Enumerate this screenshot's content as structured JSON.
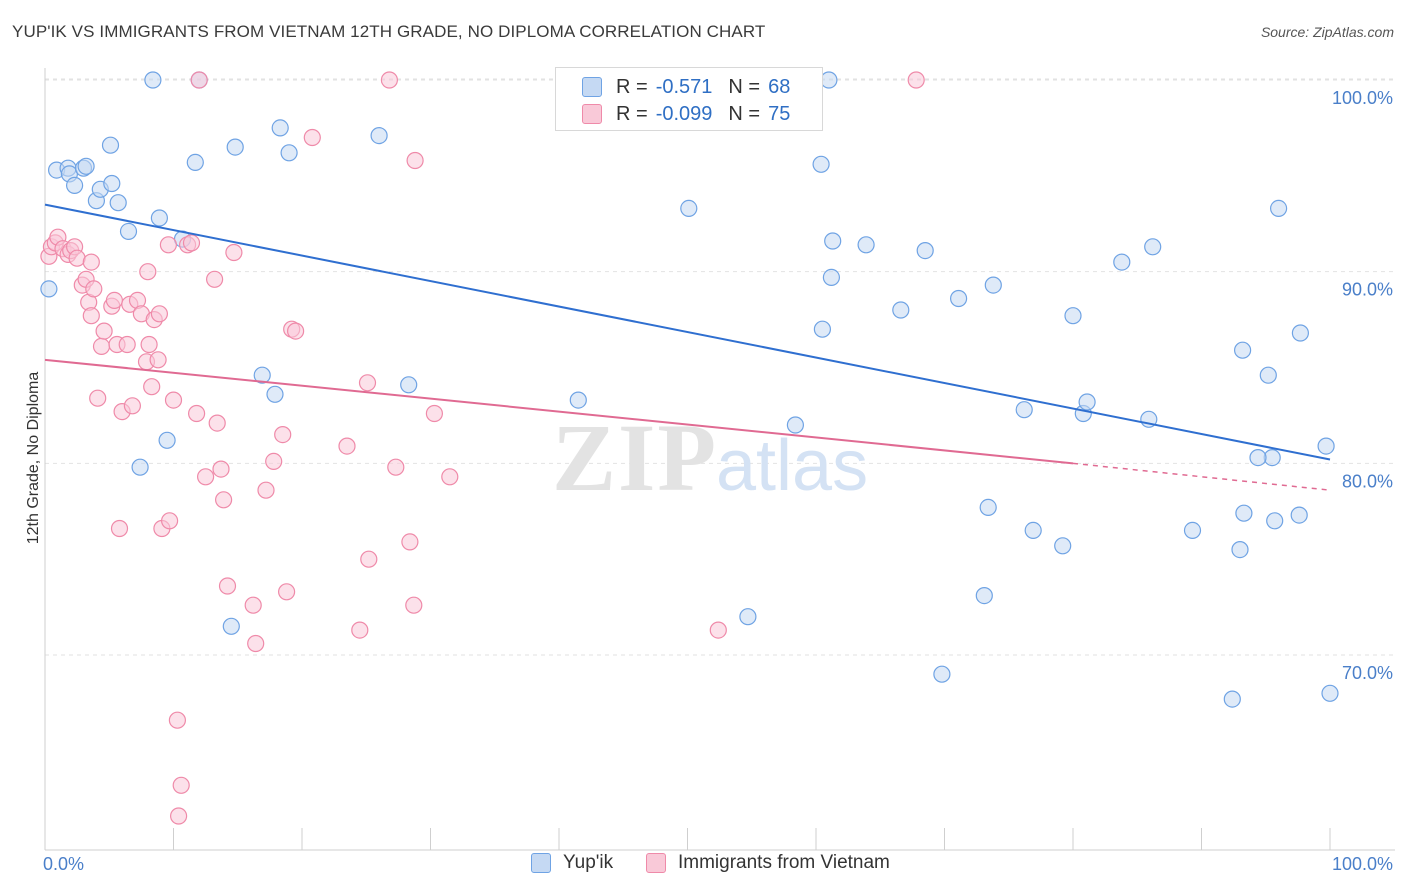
{
  "title": "YUP'IK VS IMMIGRANTS FROM VIETNAM 12TH GRADE, NO DIPLOMA CORRELATION CHART",
  "source": "Source: ZipAtlas.com",
  "watermark": {
    "zip": "ZIP",
    "atlas": "atlas"
  },
  "legend": {
    "r_label": "R =",
    "n_label": "N =",
    "rows": [
      {
        "r": "-0.571",
        "n": "68",
        "color": "#6fa3e4",
        "fill": "#c5d9f3"
      },
      {
        "r": "-0.099",
        "n": "75",
        "color": "#ef8aa9",
        "fill": "#f9c9d8"
      }
    ]
  },
  "bottom_legend": [
    "Yup'ik",
    "Immigrants from Vietnam"
  ],
  "chart_data": {
    "type": "scatter",
    "title": "YUP'IK VS IMMIGRANTS FROM VIETNAM 12TH GRADE, NO DIPLOMA CORRELATION CHART",
    "xlabel": "",
    "ylabel": "12th Grade, No Diploma",
    "xlim": [
      0,
      100
    ],
    "ylim": [
      60,
      104
    ],
    "x_tick_labels": [
      "0.0%",
      "100.0%"
    ],
    "y_ticks": [
      100,
      90,
      80,
      70
    ],
    "y_tick_labels": [
      "100.0%",
      "90.0%",
      "80.0%",
      "70.0%"
    ],
    "grid": true,
    "legend_position": "top-center",
    "series": [
      {
        "name": "Yup'ik",
        "color": "#6fa3e4",
        "fill": "#c5d9f3",
        "trend": {
          "x": [
            0,
            100
          ],
          "y": [
            93.5,
            80.2
          ]
        },
        "points": [
          [
            0.3,
            89.1
          ],
          [
            0.9,
            95.3
          ],
          [
            1.8,
            95.4
          ],
          [
            1.9,
            95.1
          ],
          [
            2.3,
            94.5
          ],
          [
            3.0,
            95.4
          ],
          [
            3.2,
            95.5
          ],
          [
            4.0,
            93.7
          ],
          [
            4.3,
            94.3
          ],
          [
            5.2,
            94.6
          ],
          [
            5.1,
            96.6
          ],
          [
            5.7,
            93.6
          ],
          [
            6.5,
            92.1
          ],
          [
            8.4,
            100.0
          ],
          [
            8.9,
            92.8
          ],
          [
            9.5,
            81.2
          ],
          [
            7.4,
            79.8
          ],
          [
            10.7,
            91.7
          ],
          [
            11.7,
            95.7
          ],
          [
            12.0,
            100.0
          ],
          [
            14.8,
            96.5
          ],
          [
            14.5,
            71.5
          ],
          [
            16.9,
            84.6
          ],
          [
            17.9,
            83.6
          ],
          [
            18.3,
            97.5
          ],
          [
            19.0,
            96.2
          ],
          [
            26.0,
            97.1
          ],
          [
            28.3,
            84.1
          ],
          [
            41.5,
            83.3
          ],
          [
            50.1,
            93.3
          ],
          [
            54.7,
            72.0
          ],
          [
            58.4,
            82.0
          ],
          [
            60.4,
            95.6
          ],
          [
            60.5,
            87.0
          ],
          [
            61.3,
            91.6
          ],
          [
            61.2,
            89.7
          ],
          [
            63.9,
            91.4
          ],
          [
            66.6,
            88.0
          ],
          [
            68.5,
            91.1
          ],
          [
            69.8,
            69.0
          ],
          [
            71.1,
            88.6
          ],
          [
            73.1,
            73.1
          ],
          [
            73.4,
            77.7
          ],
          [
            73.8,
            89.3
          ],
          [
            76.2,
            82.8
          ],
          [
            76.9,
            76.5
          ],
          [
            79.2,
            75.7
          ],
          [
            80.0,
            87.7
          ],
          [
            80.8,
            82.6
          ],
          [
            81.1,
            83.2
          ],
          [
            83.8,
            90.5
          ],
          [
            85.9,
            82.3
          ],
          [
            86.2,
            91.3
          ],
          [
            89.3,
            76.5
          ],
          [
            61.0,
            100.0
          ],
          [
            92.4,
            67.7
          ],
          [
            93.0,
            75.5
          ],
          [
            93.3,
            77.4
          ],
          [
            93.2,
            85.9
          ],
          [
            95.2,
            84.6
          ],
          [
            95.5,
            80.3
          ],
          [
            94.4,
            80.3
          ],
          [
            95.7,
            77.0
          ],
          [
            96.0,
            93.3
          ],
          [
            97.6,
            77.3
          ],
          [
            97.7,
            86.8
          ],
          [
            99.7,
            80.9
          ],
          [
            100.0,
            68.0
          ]
        ]
      },
      {
        "name": "Immigrants from Vietnam",
        "color": "#ef8aa9",
        "fill": "#f9c9d8",
        "trend": {
          "x": [
            0,
            80
          ],
          "y": [
            85.4,
            80.0
          ]
        },
        "trend_dashed": {
          "x": [
            80,
            100
          ],
          "y": [
            80.0,
            78.6
          ]
        },
        "points": [
          [
            0.3,
            90.8
          ],
          [
            0.5,
            91.3
          ],
          [
            0.8,
            91.5
          ],
          [
            1.0,
            91.8
          ],
          [
            1.4,
            91.2
          ],
          [
            1.8,
            90.9
          ],
          [
            2.0,
            91.1
          ],
          [
            2.3,
            91.3
          ],
          [
            2.5,
            90.7
          ],
          [
            2.9,
            89.3
          ],
          [
            3.2,
            89.6
          ],
          [
            3.4,
            88.4
          ],
          [
            3.6,
            87.7
          ],
          [
            3.6,
            90.5
          ],
          [
            3.8,
            89.1
          ],
          [
            4.1,
            83.4
          ],
          [
            4.4,
            86.1
          ],
          [
            4.6,
            86.9
          ],
          [
            5.2,
            88.2
          ],
          [
            5.4,
            88.5
          ],
          [
            5.6,
            86.2
          ],
          [
            5.8,
            76.6
          ],
          [
            6.0,
            82.7
          ],
          [
            6.4,
            86.2
          ],
          [
            6.6,
            88.3
          ],
          [
            6.8,
            83.0
          ],
          [
            7.2,
            88.5
          ],
          [
            7.5,
            87.8
          ],
          [
            7.9,
            85.3
          ],
          [
            8.1,
            86.2
          ],
          [
            8.3,
            84.0
          ],
          [
            8.5,
            87.5
          ],
          [
            8.9,
            87.8
          ],
          [
            8.8,
            85.4
          ],
          [
            9.1,
            76.6
          ],
          [
            9.6,
            91.4
          ],
          [
            9.7,
            77.0
          ],
          [
            10.0,
            83.3
          ],
          [
            10.3,
            66.6
          ],
          [
            10.6,
            63.2
          ],
          [
            10.4,
            61.6
          ],
          [
            11.1,
            91.4
          ],
          [
            11.4,
            91.5
          ],
          [
            11.8,
            82.6
          ],
          [
            12.0,
            100.0
          ],
          [
            12.5,
            79.3
          ],
          [
            13.2,
            89.6
          ],
          [
            13.4,
            82.1
          ],
          [
            13.7,
            79.7
          ],
          [
            13.9,
            78.1
          ],
          [
            14.2,
            73.6
          ],
          [
            14.7,
            91.0
          ],
          [
            16.2,
            72.6
          ],
          [
            16.4,
            70.6
          ],
          [
            17.2,
            78.6
          ],
          [
            17.8,
            80.1
          ],
          [
            18.5,
            81.5
          ],
          [
            18.8,
            73.3
          ],
          [
            19.2,
            87.0
          ],
          [
            19.5,
            86.9
          ],
          [
            20.8,
            97.0
          ],
          [
            23.5,
            80.9
          ],
          [
            24.5,
            71.3
          ],
          [
            25.1,
            84.2
          ],
          [
            25.2,
            75.0
          ],
          [
            26.8,
            100.0
          ],
          [
            27.3,
            79.8
          ],
          [
            28.4,
            75.9
          ],
          [
            28.7,
            72.6
          ],
          [
            28.8,
            95.8
          ],
          [
            30.3,
            82.6
          ],
          [
            31.5,
            79.3
          ],
          [
            52.4,
            71.3
          ],
          [
            67.8,
            100.0
          ],
          [
            8.0,
            90.0
          ]
        ]
      }
    ]
  }
}
